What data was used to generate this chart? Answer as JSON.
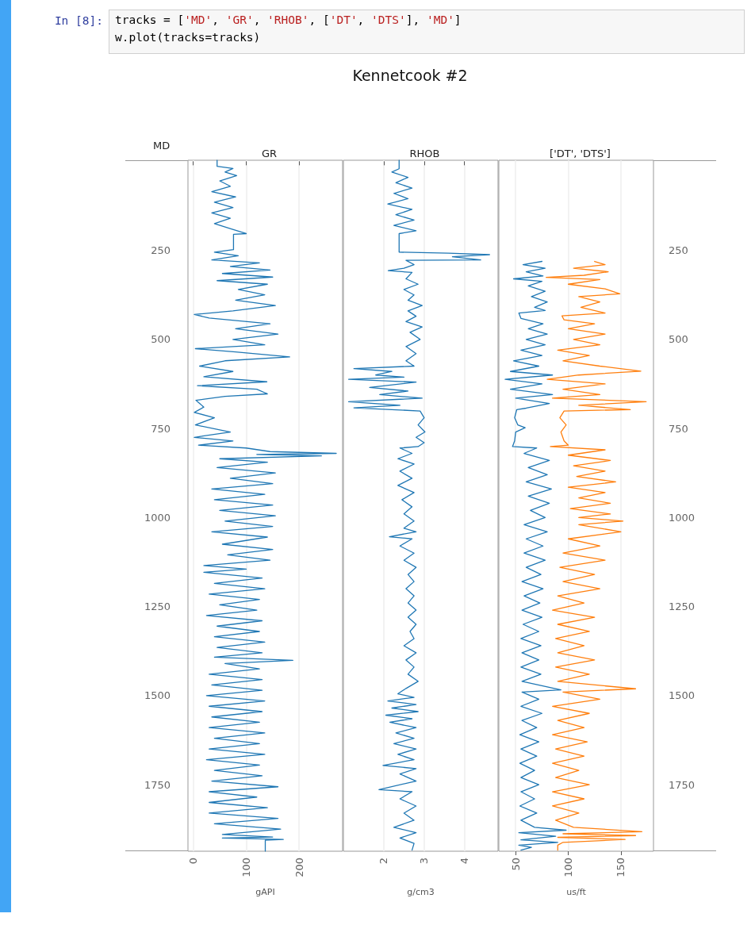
{
  "chart_data": [
    {
      "type": "line",
      "title": "GR",
      "ylabel": "MD",
      "xlabel": "gAPI",
      "xlim": [
        -10,
        282
      ],
      "xticks": [
        0,
        100,
        200
      ],
      "ylim": [
        1937,
        -3
      ],
      "yticks": [
        250,
        500,
        750,
        1000,
        1250,
        1500,
        1750
      ],
      "grid": "x",
      "marker": "none",
      "line_style": "solid",
      "annotations": [
        "In [8]:",
        "tracks = ['MD', 'GR', 'RHOB', ['DT', 'DTS'], 'MD']",
        "w.plot(tracks=tracks)",
        "Kennetcook #2"
      ],
      "series": [
        {
          "color": "#1f77b4",
          "x": [
            45,
            45,
            75,
            60,
            82,
            50,
            70,
            35,
            80,
            40,
            75,
            35,
            70,
            40,
            72,
            100,
            76,
            76,
            40,
            85,
            35,
            125,
            70,
            145,
            55,
            150,
            45,
            140,
            85,
            135,
            80,
            155,
            75,
            2,
            30,
            145,
            80,
            160,
            75,
            135,
            4,
            80,
            182,
            60,
            12,
            75,
            20,
            139,
            8,
            120,
            140,
            60,
            5,
            20,
            2,
            40,
            4,
            70,
            2,
            75,
            10,
            100,
            145,
            270,
            120,
            242,
            50,
            140,
            45,
            155,
            70,
            150,
            35,
            135,
            40,
            150,
            50,
            155,
            60,
            150,
            35,
            140,
            55,
            150,
            65,
            145,
            20,
            100,
            20,
            130,
            40,
            135,
            30,
            125,
            50,
            120,
            25,
            130,
            45,
            125,
            40,
            135,
            45,
            130,
            40,
            188,
            60,
            125,
            30,
            130,
            35,
            130,
            25,
            135,
            30,
            130,
            35,
            125,
            30,
            135,
            40,
            125,
            30,
            135,
            25,
            125,
            40,
            130,
            35,
            160,
            30,
            120,
            30,
            140,
            30,
            160,
            40,
            165,
            55,
            150,
            55,
            170,
            136,
            136
          ],
          "values": [
            -3,
            14,
            20,
            30,
            40,
            55,
            70,
            85,
            100,
            115,
            130,
            145,
            160,
            175,
            190,
            203,
            205,
            248,
            255,
            265,
            277,
            285,
            295,
            305,
            315,
            325,
            335,
            345,
            360,
            375,
            390,
            405,
            420,
            430,
            440,
            456,
            470,
            485,
            500,
            515,
            526,
            535,
            549,
            560,
            575,
            590,
            605,
            619,
            630,
            640,
            653,
            660,
            671,
            690,
            705,
            720,
            740,
            760,
            775,
            785,
            797,
            805,
            815,
            820,
            823,
            827,
            835,
            845,
            860,
            875,
            890,
            905,
            920,
            935,
            950,
            965,
            980,
            995,
            1010,
            1025,
            1040,
            1055,
            1075,
            1090,
            1105,
            1120,
            1135,
            1145,
            1154,
            1170,
            1185,
            1200,
            1215,
            1230,
            1245,
            1260,
            1275,
            1290,
            1305,
            1320,
            1335,
            1350,
            1365,
            1380,
            1392,
            1401,
            1410,
            1425,
            1440,
            1455,
            1470,
            1485,
            1500,
            1515,
            1530,
            1545,
            1560,
            1575,
            1590,
            1605,
            1620,
            1635,
            1650,
            1665,
            1680,
            1695,
            1710,
            1725,
            1740,
            1756,
            1770,
            1785,
            1800,
            1815,
            1830,
            1845,
            1860,
            1875,
            1890,
            1897,
            1900,
            1904,
            1906,
            1937
          ]
        }
      ]
    },
    {
      "type": "line",
      "title": "RHOB",
      "xlabel": "g/cm3",
      "xlim": [
        1,
        4.83
      ],
      "xticks": [
        2,
        3,
        4
      ],
      "ylim": [
        1937,
        -3
      ],
      "tick_labels": "x",
      "grid": "x",
      "marker": "none",
      "line_style": "solid",
      "series": [
        {
          "color": "#1f77b4",
          "x": [
            2.38,
            2.38,
            2.2,
            2.6,
            2.3,
            2.7,
            2.25,
            2.6,
            2.1,
            2.7,
            2.3,
            2.75,
            2.25,
            2.8,
            2.38,
            2.38,
            3.6,
            4.62,
            3.7,
            4.4,
            2.55,
            2.75,
            2.5,
            2.11,
            2.7,
            2.55,
            2.85,
            2.5,
            2.75,
            2.6,
            2.95,
            2.6,
            2.8,
            2.55,
            2.95,
            2.65,
            2.9,
            2.55,
            2.8,
            2.55,
            2.75,
            1.26,
            2.2,
            1.8,
            2.5,
            1.13,
            2.8,
            1.65,
            2.6,
            1.9,
            2.95,
            1.13,
            2.4,
            1.26,
            2.9,
            3.0,
            2.85,
            3.02,
            2.8,
            3.0,
            2.85,
            2.4,
            2.7,
            2.35,
            2.75,
            2.4,
            2.7,
            2.35,
            2.75,
            2.45,
            2.7,
            2.5,
            2.75,
            2.5,
            2.8,
            2.14,
            2.7,
            2.4,
            2.75,
            2.5,
            2.8,
            2.6,
            2.75,
            2.55,
            2.75,
            2.6,
            2.8,
            2.6,
            2.8,
            2.65,
            2.75,
            2.5,
            2.8,
            2.55,
            2.75,
            2.6,
            2.85,
            2.55,
            2.35,
            2.75,
            2.1,
            2.8,
            2.2,
            2.85,
            2.05,
            2.7,
            2.15,
            2.8,
            2.3,
            2.75,
            2.25,
            2.8,
            2.35,
            2.75,
            1.98,
            2.8,
            2.4,
            2.8,
            1.88,
            2.7,
            2.4,
            2.8,
            2.5,
            2.75,
            2.25,
            2.8,
            2.4,
            2.75,
            2.7
          ],
          "values": [
            -3,
            21,
            30,
            45,
            60,
            75,
            90,
            105,
            120,
            135,
            150,
            165,
            180,
            195,
            203,
            255,
            258,
            262,
            268,
            277,
            278,
            290,
            300,
            307,
            312,
            330,
            345,
            360,
            375,
            390,
            405,
            420,
            435,
            450,
            465,
            480,
            500,
            520,
            540,
            560,
            575,
            582,
            590,
            600,
            606,
            612,
            620,
            635,
            645,
            655,
            665,
            675,
            685,
            692,
            701,
            720,
            740,
            760,
            775,
            790,
            801,
            805,
            820,
            835,
            850,
            870,
            890,
            910,
            930,
            950,
            970,
            990,
            1010,
            1030,
            1040,
            1054,
            1060,
            1080,
            1100,
            1120,
            1140,
            1160,
            1180,
            1200,
            1220,
            1240,
            1260,
            1280,
            1300,
            1320,
            1340,
            1360,
            1380,
            1400,
            1420,
            1440,
            1460,
            1480,
            1495,
            1505,
            1515,
            1525,
            1535,
            1545,
            1555,
            1565,
            1575,
            1590,
            1605,
            1620,
            1635,
            1650,
            1665,
            1680,
            1696,
            1705,
            1720,
            1740,
            1764,
            1770,
            1790,
            1810,
            1830,
            1850,
            1870,
            1885,
            1900,
            1915,
            1934
          ]
        }
      ]
    },
    {
      "type": "line",
      "title": "['DT', 'DTS']",
      "xlabel": "us/ft",
      "xlim": [
        34,
        181
      ],
      "xticks": [
        50,
        100,
        150
      ],
      "y2lim": [
        1937,
        -3
      ],
      "y2ticks": [
        250,
        500,
        750,
        1000,
        1250,
        1500,
        1750
      ],
      "grid": "x",
      "marker": "none",
      "line_style": "solid",
      "series": [
        {
          "color": "#1f77b4",
          "axis": "y2",
          "x": [
            75,
            57,
            78,
            60,
            76,
            48,
            75,
            62,
            78,
            65,
            80,
            68,
            78,
            53,
            55,
            76,
            62,
            80,
            60,
            78,
            55,
            75,
            48,
            72,
            45,
            85,
            40,
            75,
            45,
            85,
            50,
            82,
            60,
            51,
            49,
            52,
            59,
            50,
            49,
            47,
            70,
            58,
            82,
            62,
            80,
            60,
            84,
            62,
            82,
            64,
            78,
            58,
            80,
            60,
            76,
            58,
            78,
            60,
            74,
            56,
            76,
            58,
            73,
            56,
            75,
            57,
            72,
            55,
            74,
            56,
            72,
            55,
            74,
            56,
            93,
            56,
            72,
            55,
            75,
            56,
            70,
            54,
            72,
            55,
            70,
            54,
            68,
            55,
            72,
            55,
            68,
            54,
            70,
            55,
            68,
            98,
            53,
            88,
            55,
            90,
            53,
            65,
            55
          ],
          "values": [
            281,
            290,
            300,
            310,
            322,
            330,
            337,
            350,
            365,
            380,
            395,
            410,
            419,
            426,
            441,
            456,
            470,
            485,
            500,
            515,
            530,
            545,
            560,
            575,
            590,
            600,
            612,
            625,
            640,
            655,
            665,
            680,
            693,
            697,
            720,
            740,
            748,
            760,
            785,
            801,
            805,
            820,
            840,
            860,
            880,
            900,
            920,
            940,
            960,
            980,
            1000,
            1020,
            1040,
            1060,
            1080,
            1100,
            1120,
            1140,
            1160,
            1180,
            1200,
            1220,
            1240,
            1260,
            1280,
            1300,
            1320,
            1340,
            1360,
            1380,
            1400,
            1420,
            1440,
            1460,
            1484,
            1490,
            1510,
            1530,
            1550,
            1570,
            1590,
            1610,
            1630,
            1650,
            1670,
            1690,
            1710,
            1730,
            1750,
            1770,
            1790,
            1810,
            1830,
            1850,
            1870,
            1878,
            1885,
            1895,
            1905,
            1912,
            1920,
            1926,
            1934
          ]
        },
        {
          "color": "#ff7f0e",
          "axis": "y2",
          "x": [
            125,
            135,
            105,
            138,
            115,
            79,
            130,
            100,
            135,
            149,
            110,
            130,
            112,
            135,
            94,
            96,
            125,
            100,
            135,
            105,
            130,
            90,
            120,
            95,
            130,
            169,
            110,
            80,
            135,
            95,
            130,
            85,
            174,
            110,
            159,
            96,
            92,
            98,
            93,
            96,
            100,
            83,
            135,
            100,
            140,
            105,
            135,
            108,
            145,
            100,
            135,
            110,
            140,
            102,
            140,
            110,
            152,
            110,
            150,
            100,
            130,
            95,
            135,
            92,
            125,
            95,
            130,
            90,
            115,
            85,
            125,
            90,
            120,
            88,
            115,
            90,
            125,
            88,
            120,
            90,
            164,
            95,
            130,
            85,
            120,
            90,
            115,
            85,
            118,
            88,
            115,
            85,
            110,
            88,
            120,
            85,
            115,
            85,
            110,
            88,
            105,
            170,
            95,
            164,
            90,
            154,
            95,
            90,
            90
          ],
          "values": [
            281,
            290,
            300,
            310,
            320,
            326,
            332,
            345,
            358,
            372,
            380,
            395,
            410,
            426,
            434,
            445,
            456,
            470,
            485,
            500,
            515,
            530,
            545,
            560,
            575,
            589,
            600,
            612,
            625,
            640,
            655,
            665,
            675,
            685,
            697,
            701,
            720,
            740,
            760,
            785,
            797,
            801,
            810,
            825,
            840,
            855,
            870,
            885,
            900,
            915,
            930,
            945,
            960,
            975,
            990,
            1000,
            1010,
            1020,
            1040,
            1060,
            1080,
            1100,
            1120,
            1140,
            1160,
            1180,
            1200,
            1220,
            1240,
            1260,
            1280,
            1300,
            1320,
            1340,
            1360,
            1380,
            1400,
            1420,
            1440,
            1460,
            1481,
            1490,
            1510,
            1530,
            1550,
            1570,
            1590,
            1610,
            1630,
            1650,
            1670,
            1690,
            1710,
            1730,
            1750,
            1770,
            1790,
            1810,
            1830,
            1850,
            1870,
            1882,
            1888,
            1893,
            1898,
            1904,
            1912,
            1920,
            1934
          ]
        }
      ]
    }
  ]
}
